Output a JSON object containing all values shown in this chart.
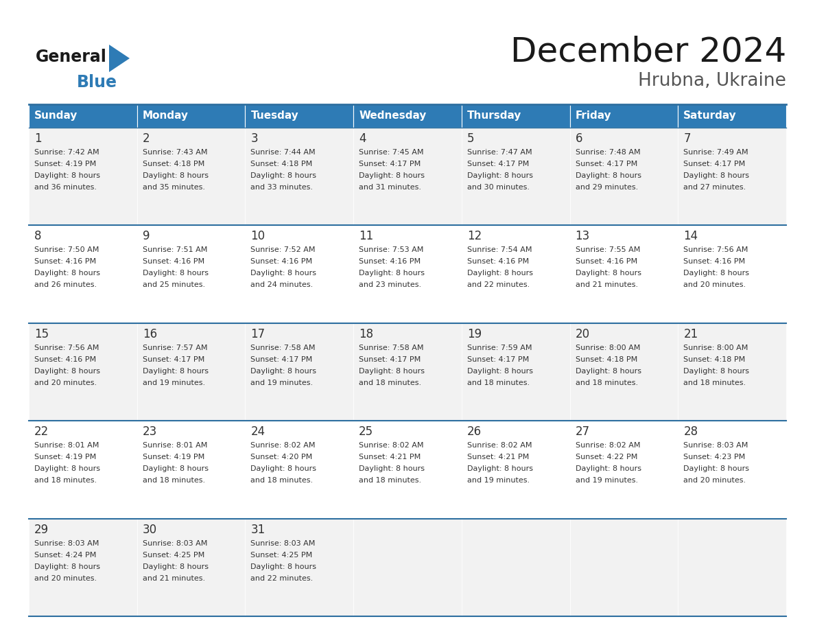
{
  "title": "December 2024",
  "subtitle": "Hrubna, Ukraine",
  "days_of_week": [
    "Sunday",
    "Monday",
    "Tuesday",
    "Wednesday",
    "Thursday",
    "Friday",
    "Saturday"
  ],
  "header_bg": "#2E7BB5",
  "header_text": "#FFFFFF",
  "cell_bg_odd": "#F2F2F2",
  "cell_bg_even": "#FFFFFF",
  "border_color": "#2E6FA0",
  "day_num_color": "#333333",
  "text_color": "#333333",
  "title_color": "#1a1a1a",
  "logo_general_color": "#1a1a1a",
  "logo_blue_color": "#2E7BB5",
  "logo_triangle_color": "#2E7BB5",
  "subtitle_color": "#555555",
  "calendar_data": [
    [
      {
        "day": 1,
        "sunrise": "7:42 AM",
        "sunset": "4:19 PM",
        "daylight": "8 hours and 36 minutes."
      },
      {
        "day": 2,
        "sunrise": "7:43 AM",
        "sunset": "4:18 PM",
        "daylight": "8 hours and 35 minutes."
      },
      {
        "day": 3,
        "sunrise": "7:44 AM",
        "sunset": "4:18 PM",
        "daylight": "8 hours and 33 minutes."
      },
      {
        "day": 4,
        "sunrise": "7:45 AM",
        "sunset": "4:17 PM",
        "daylight": "8 hours and 31 minutes."
      },
      {
        "day": 5,
        "sunrise": "7:47 AM",
        "sunset": "4:17 PM",
        "daylight": "8 hours and 30 minutes."
      },
      {
        "day": 6,
        "sunrise": "7:48 AM",
        "sunset": "4:17 PM",
        "daylight": "8 hours and 29 minutes."
      },
      {
        "day": 7,
        "sunrise": "7:49 AM",
        "sunset": "4:17 PM",
        "daylight": "8 hours and 27 minutes."
      }
    ],
    [
      {
        "day": 8,
        "sunrise": "7:50 AM",
        "sunset": "4:16 PM",
        "daylight": "8 hours and 26 minutes."
      },
      {
        "day": 9,
        "sunrise": "7:51 AM",
        "sunset": "4:16 PM",
        "daylight": "8 hours and 25 minutes."
      },
      {
        "day": 10,
        "sunrise": "7:52 AM",
        "sunset": "4:16 PM",
        "daylight": "8 hours and 24 minutes."
      },
      {
        "day": 11,
        "sunrise": "7:53 AM",
        "sunset": "4:16 PM",
        "daylight": "8 hours and 23 minutes."
      },
      {
        "day": 12,
        "sunrise": "7:54 AM",
        "sunset": "4:16 PM",
        "daylight": "8 hours and 22 minutes."
      },
      {
        "day": 13,
        "sunrise": "7:55 AM",
        "sunset": "4:16 PM",
        "daylight": "8 hours and 21 minutes."
      },
      {
        "day": 14,
        "sunrise": "7:56 AM",
        "sunset": "4:16 PM",
        "daylight": "8 hours and 20 minutes."
      }
    ],
    [
      {
        "day": 15,
        "sunrise": "7:56 AM",
        "sunset": "4:16 PM",
        "daylight": "8 hours and 20 minutes."
      },
      {
        "day": 16,
        "sunrise": "7:57 AM",
        "sunset": "4:17 PM",
        "daylight": "8 hours and 19 minutes."
      },
      {
        "day": 17,
        "sunrise": "7:58 AM",
        "sunset": "4:17 PM",
        "daylight": "8 hours and 19 minutes."
      },
      {
        "day": 18,
        "sunrise": "7:58 AM",
        "sunset": "4:17 PM",
        "daylight": "8 hours and 18 minutes."
      },
      {
        "day": 19,
        "sunrise": "7:59 AM",
        "sunset": "4:17 PM",
        "daylight": "8 hours and 18 minutes."
      },
      {
        "day": 20,
        "sunrise": "8:00 AM",
        "sunset": "4:18 PM",
        "daylight": "8 hours and 18 minutes."
      },
      {
        "day": 21,
        "sunrise": "8:00 AM",
        "sunset": "4:18 PM",
        "daylight": "8 hours and 18 minutes."
      }
    ],
    [
      {
        "day": 22,
        "sunrise": "8:01 AM",
        "sunset": "4:19 PM",
        "daylight": "8 hours and 18 minutes."
      },
      {
        "day": 23,
        "sunrise": "8:01 AM",
        "sunset": "4:19 PM",
        "daylight": "8 hours and 18 minutes."
      },
      {
        "day": 24,
        "sunrise": "8:02 AM",
        "sunset": "4:20 PM",
        "daylight": "8 hours and 18 minutes."
      },
      {
        "day": 25,
        "sunrise": "8:02 AM",
        "sunset": "4:21 PM",
        "daylight": "8 hours and 18 minutes."
      },
      {
        "day": 26,
        "sunrise": "8:02 AM",
        "sunset": "4:21 PM",
        "daylight": "8 hours and 19 minutes."
      },
      {
        "day": 27,
        "sunrise": "8:02 AM",
        "sunset": "4:22 PM",
        "daylight": "8 hours and 19 minutes."
      },
      {
        "day": 28,
        "sunrise": "8:03 AM",
        "sunset": "4:23 PM",
        "daylight": "8 hours and 20 minutes."
      }
    ],
    [
      {
        "day": 29,
        "sunrise": "8:03 AM",
        "sunset": "4:24 PM",
        "daylight": "8 hours and 20 minutes."
      },
      {
        "day": 30,
        "sunrise": "8:03 AM",
        "sunset": "4:25 PM",
        "daylight": "8 hours and 21 minutes."
      },
      {
        "day": 31,
        "sunrise": "8:03 AM",
        "sunset": "4:25 PM",
        "daylight": "8 hours and 22 minutes."
      },
      null,
      null,
      null,
      null
    ]
  ]
}
